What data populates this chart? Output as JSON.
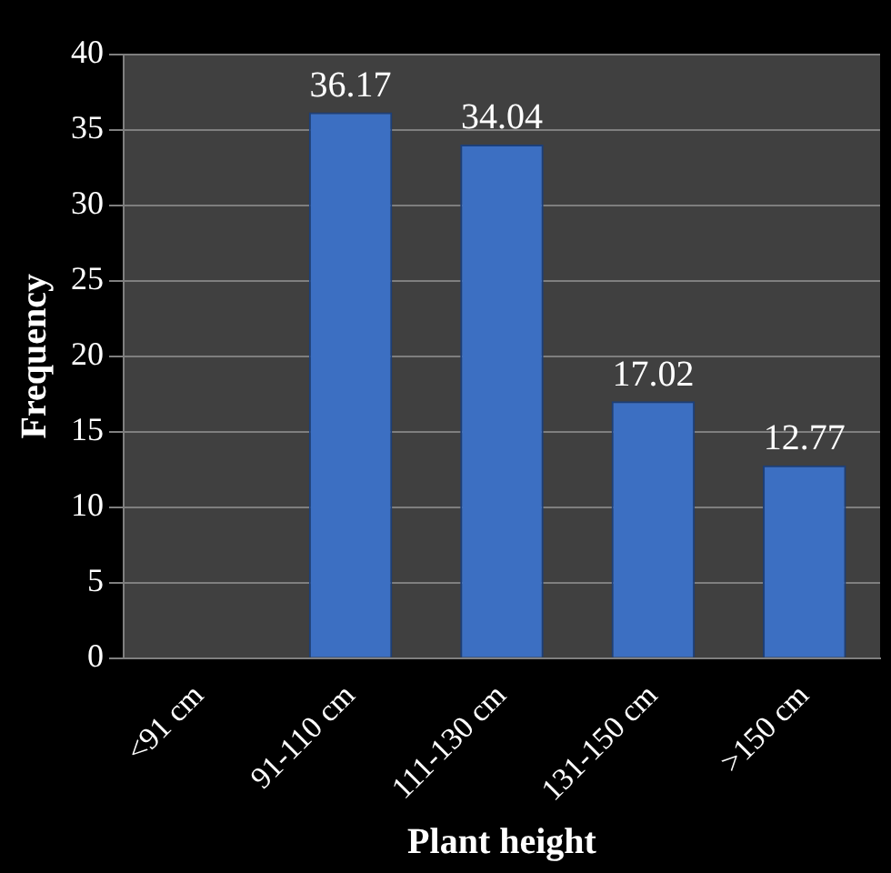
{
  "chart_data": {
    "type": "bar",
    "xlabel": "Plant height",
    "ylabel": "Frequency",
    "categories": [
      "<91 cm",
      "91-110 cm",
      "111-130 cm",
      "131-150 cm",
      ">150 cm"
    ],
    "values": [
      0,
      36.17,
      34.04,
      17.02,
      12.77
    ],
    "value_labels": [
      null,
      "36.17",
      "34.04",
      "17.02",
      "12.77"
    ],
    "color": "#3c6fc2",
    "ylim": [
      0,
      40
    ],
    "yticks": [
      0,
      5,
      10,
      15,
      20,
      25,
      30,
      35,
      40
    ],
    "grid": "y",
    "legend": false
  }
}
